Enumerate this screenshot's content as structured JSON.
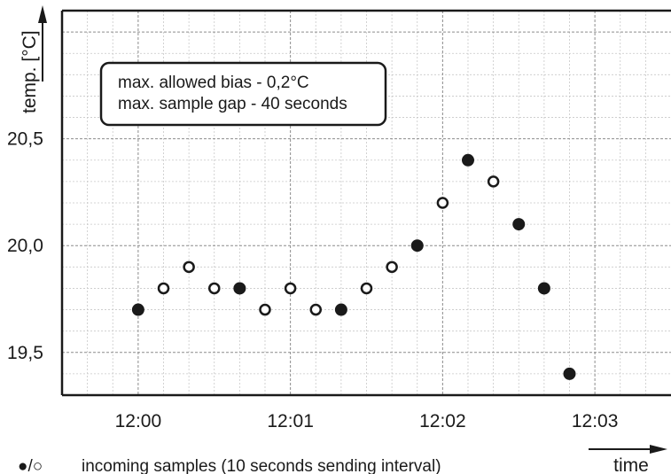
{
  "chart_data": {
    "type": "scatter",
    "ylabel": "temp. [°C]",
    "xlabel": "time",
    "x_ticks": [
      "12:00",
      "12:01",
      "12:02",
      "12:03"
    ],
    "y_ticks": [
      "19,5",
      "20,0",
      "20,5"
    ],
    "x_range_seconds_after_1200": [
      -30,
      210
    ],
    "y_range": [
      19.3,
      21.1
    ],
    "grid": true,
    "annotation": [
      "max. allowed bias - 0,2°C",
      "max. sample gap - 40 seconds"
    ],
    "legend": {
      "symbols": "●/○",
      "label": "incoming samples (10 seconds sending interval)"
    },
    "points": [
      {
        "time": "12:00:00",
        "temp": 19.7,
        "filled": true
      },
      {
        "time": "12:00:10",
        "temp": 19.8,
        "filled": false
      },
      {
        "time": "12:00:20",
        "temp": 19.9,
        "filled": false
      },
      {
        "time": "12:00:30",
        "temp": 19.8,
        "filled": false
      },
      {
        "time": "12:00:40",
        "temp": 19.8,
        "filled": true
      },
      {
        "time": "12:00:50",
        "temp": 19.7,
        "filled": false
      },
      {
        "time": "12:01:00",
        "temp": 19.8,
        "filled": false
      },
      {
        "time": "12:01:10",
        "temp": 19.7,
        "filled": false
      },
      {
        "time": "12:01:20",
        "temp": 19.7,
        "filled": true
      },
      {
        "time": "12:01:30",
        "temp": 19.8,
        "filled": false
      },
      {
        "time": "12:01:40",
        "temp": 19.9,
        "filled": false
      },
      {
        "time": "12:01:50",
        "temp": 20.0,
        "filled": true
      },
      {
        "time": "12:02:00",
        "temp": 20.2,
        "filled": false
      },
      {
        "time": "12:02:10",
        "temp": 20.4,
        "filled": true
      },
      {
        "time": "12:02:20",
        "temp": 20.3,
        "filled": false
      },
      {
        "time": "12:02:30",
        "temp": 20.1,
        "filled": true
      },
      {
        "time": "12:02:40",
        "temp": 19.8,
        "filled": true
      },
      {
        "time": "12:02:50",
        "temp": 19.4,
        "filled": true
      }
    ]
  }
}
